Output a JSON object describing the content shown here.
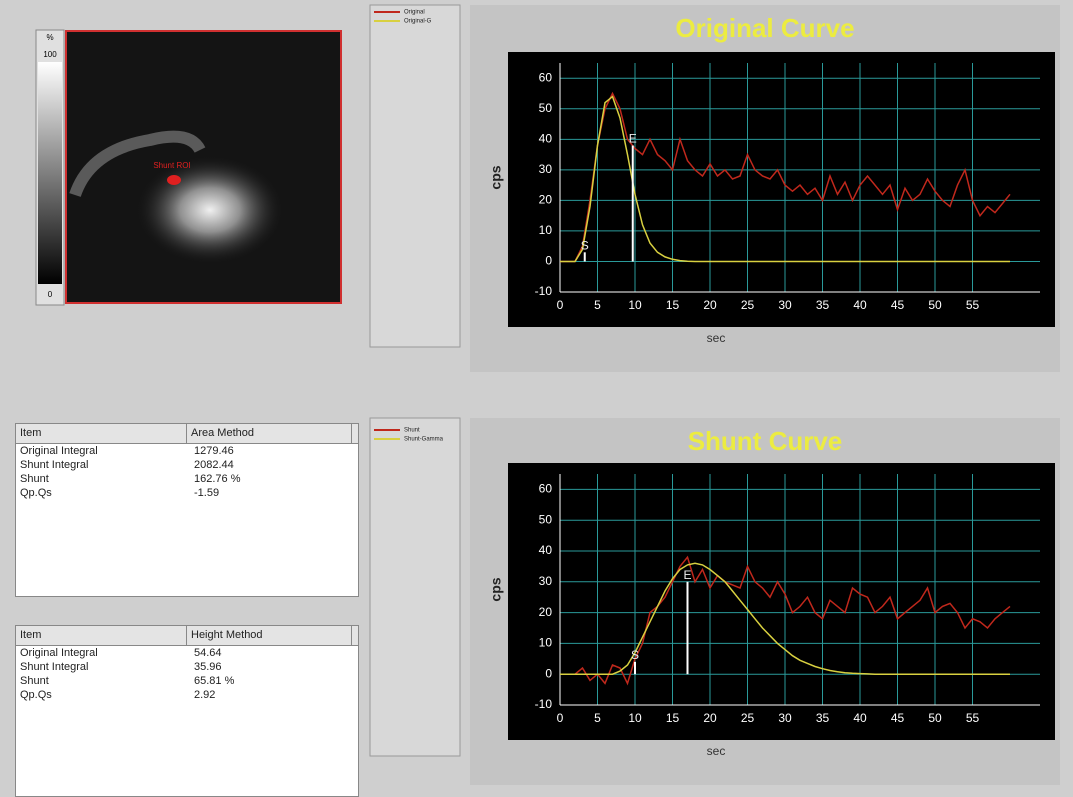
{
  "image_panel": {
    "colorbar_unit": "%",
    "colorbar_max": "100",
    "colorbar_min": "0",
    "roi_label": "Shunt ROI"
  },
  "tables": [
    {
      "header": [
        "Item",
        "Area Method"
      ],
      "rows": [
        [
          "Original Integral",
          "1279.46"
        ],
        [
          "Shunt Integral",
          "2082.44"
        ],
        [
          "Shunt",
          "162.76 %"
        ],
        [
          "Qp.Qs",
          "-1.59"
        ]
      ]
    },
    {
      "header": [
        "Item",
        "Height Method"
      ],
      "rows": [
        [
          "Original Integral",
          "54.64"
        ],
        [
          "Shunt Integral",
          "35.96"
        ],
        [
          "Shunt",
          "65.81 %"
        ],
        [
          "Qp.Qs",
          "2.92"
        ]
      ]
    }
  ],
  "chart_data": [
    {
      "type": "line",
      "title": "Original Curve",
      "x_label": "sec",
      "y_label": "cps",
      "xlim": [
        0,
        64
      ],
      "ylim": [
        -10,
        65
      ],
      "xticks": [
        0,
        5,
        10,
        15,
        20,
        25,
        30,
        35,
        40,
        45,
        50,
        55
      ],
      "yticks": [
        -10,
        0,
        10,
        20,
        30,
        40,
        50,
        60
      ],
      "grid": true,
      "x": [
        0,
        1,
        2,
        3,
        4,
        5,
        6,
        7,
        8,
        9,
        10,
        11,
        12,
        13,
        14,
        15,
        16,
        17,
        18,
        19,
        20,
        21,
        22,
        23,
        24,
        25,
        26,
        27,
        28,
        29,
        30,
        31,
        32,
        33,
        34,
        35,
        36,
        37,
        38,
        39,
        40,
        41,
        42,
        43,
        44,
        45,
        46,
        47,
        48,
        49,
        50,
        51,
        52,
        53,
        54,
        55,
        56,
        57,
        58,
        59,
        60
      ],
      "series": [
        {
          "name": "Original",
          "color": "#c0281c",
          "values": [
            0,
            0,
            0,
            5,
            20,
            38,
            50,
            55,
            50,
            40,
            37,
            35,
            40,
            35,
            33,
            30,
            40,
            33,
            30,
            28,
            32,
            28,
            30,
            27,
            28,
            35,
            30,
            28,
            27,
            30,
            25,
            23,
            25,
            22,
            24,
            20,
            28,
            22,
            26,
            20,
            25,
            28,
            25,
            22,
            25,
            17,
            24,
            20,
            22,
            27,
            23,
            20,
            18,
            25,
            30,
            20,
            15,
            18,
            16,
            19,
            22
          ]
        },
        {
          "name": "Original-G",
          "color": "#d8d040",
          "values": [
            0,
            0,
            0,
            4,
            18,
            38,
            52,
            54,
            47,
            35,
            22,
            12,
            6,
            3,
            1.5,
            0.7,
            0.3,
            0.1,
            0,
            0,
            0,
            0,
            0,
            0,
            0,
            0,
            0,
            0,
            0,
            0,
            0,
            0,
            0,
            0,
            0,
            0,
            0,
            0,
            0,
            0,
            0,
            0,
            0,
            0,
            0,
            0,
            0,
            0,
            0,
            0,
            0,
            0,
            0,
            0,
            0,
            0,
            0,
            0,
            0,
            0,
            0
          ]
        }
      ],
      "markers": [
        {
          "label": "S",
          "x": 3.3,
          "value": 3
        },
        {
          "label": "E",
          "x": 9.7,
          "value": 38
        }
      ]
    },
    {
      "type": "line",
      "title": "Shunt Curve",
      "x_label": "sec",
      "y_label": "cps",
      "xlim": [
        0,
        64
      ],
      "ylim": [
        -10,
        65
      ],
      "xticks": [
        0,
        5,
        10,
        15,
        20,
        25,
        30,
        35,
        40,
        45,
        50,
        55
      ],
      "yticks": [
        -10,
        0,
        10,
        20,
        30,
        40,
        50,
        60
      ],
      "grid": true,
      "x": [
        0,
        1,
        2,
        3,
        4,
        5,
        6,
        7,
        8,
        9,
        10,
        11,
        12,
        13,
        14,
        15,
        16,
        17,
        18,
        19,
        20,
        21,
        22,
        23,
        24,
        25,
        26,
        27,
        28,
        29,
        30,
        31,
        32,
        33,
        34,
        35,
        36,
        37,
        38,
        39,
        40,
        41,
        42,
        43,
        44,
        45,
        46,
        47,
        48,
        49,
        50,
        51,
        52,
        53,
        54,
        55,
        56,
        57,
        58,
        59,
        60
      ],
      "series": [
        {
          "name": "Shunt",
          "color": "#c0281c",
          "values": [
            0,
            0,
            0,
            2,
            -2,
            0,
            -3,
            3,
            2,
            -3,
            5,
            10,
            20,
            22,
            25,
            30,
            35,
            38,
            30,
            34,
            28,
            32,
            30,
            29,
            28,
            35,
            30,
            28,
            25,
            30,
            26,
            20,
            22,
            25,
            20,
            18,
            24,
            22,
            20,
            28,
            26,
            25,
            20,
            22,
            25,
            18,
            20,
            22,
            24,
            28,
            20,
            22,
            23,
            20,
            15,
            18,
            17,
            15,
            18,
            20,
            22
          ]
        },
        {
          "name": "Shunt-Gamma",
          "color": "#d8d040",
          "values": [
            0,
            0,
            0,
            0,
            0,
            0,
            0,
            0,
            1,
            3,
            7,
            12,
            17,
            22,
            27,
            31,
            34,
            35.5,
            36,
            35.5,
            34,
            32,
            30,
            27,
            24,
            21,
            18,
            15,
            12.5,
            10,
            8,
            6,
            4.5,
            3.5,
            2.5,
            1.8,
            1.2,
            0.8,
            0.5,
            0.3,
            0.2,
            0.1,
            0,
            0,
            0,
            0,
            0,
            0,
            0,
            0,
            0,
            0,
            0,
            0,
            0,
            0,
            0,
            0,
            0,
            0,
            0
          ]
        }
      ],
      "markers": [
        {
          "label": "S",
          "x": 10,
          "value": 4
        },
        {
          "label": "E",
          "x": 17,
          "value": 30
        }
      ]
    }
  ]
}
